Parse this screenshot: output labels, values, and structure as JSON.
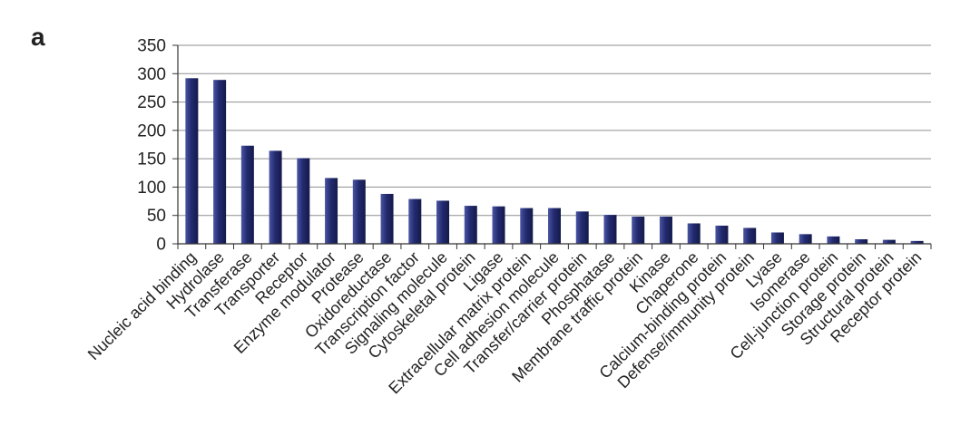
{
  "panel_label": "a",
  "chart_data": {
    "type": "bar",
    "ylim": [
      0,
      350
    ],
    "yticks": [
      0,
      50,
      100,
      150,
      200,
      250,
      300,
      350
    ],
    "grid": true,
    "categories": [
      "Nucleic acid binding",
      "Hydrolase",
      "Transferase",
      "Transporter",
      "Receptor",
      "Enzyme modulator",
      "Protease",
      "Oxidoreductase",
      "Transcription factor",
      "Signaling molecule",
      "Cytoskeletal protein",
      "Ligase",
      "Extracellular matrix protein",
      "Cell adhesion molecule",
      "Transfer/carrier protein",
      "Phosphatase",
      "Membrane traffic protein",
      "Kinase",
      "Chaperone",
      "Calcium-binding protein",
      "Defense/immunity protein",
      "Lyase",
      "Isomerase",
      "Cell-junction protein",
      "Storage protein",
      "Structural protein",
      "Receptor protein"
    ],
    "values": [
      292,
      289,
      173,
      164,
      151,
      116,
      113,
      88,
      79,
      76,
      67,
      66,
      63,
      63,
      57,
      51,
      48,
      48,
      36,
      32,
      28,
      20,
      17,
      13,
      8,
      7,
      5
    ]
  },
  "colors": {
    "bar": "#232b70",
    "bar_highlight": "#4a55a3",
    "bar_shadow": "#141a4a",
    "grid": "#8f8f8f",
    "axis": "#333333",
    "text": "#222222"
  }
}
